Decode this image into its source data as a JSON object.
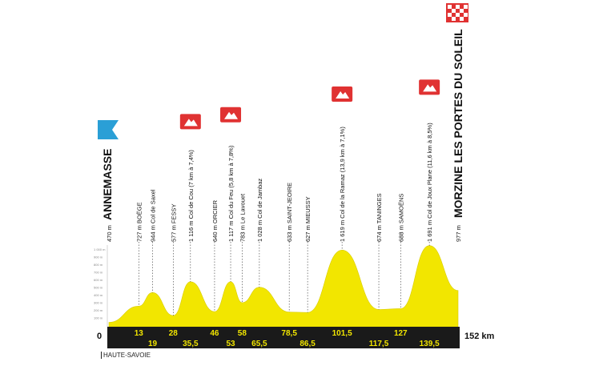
{
  "chart_data": {
    "type": "area",
    "start_km": "0",
    "end_km": "152 km",
    "colors": {
      "profile_fill": "#f2e600",
      "distance_band": "#1a1a1a",
      "climb_marker": "#e03232",
      "start_marker": "#2a9fd6"
    },
    "y_ticks": [
      "1 000 m",
      "900 m",
      "800 m",
      "700 m",
      "600 m",
      "500 m",
      "400 m",
      "300 m",
      "200 m",
      "100 m"
    ],
    "distance_labels": [
      "13",
      "19",
      "28",
      "35,5",
      "46",
      "53",
      "58",
      "65,5",
      "78,5",
      "86,5",
      "101,5",
      "117,5",
      "127",
      "139,5"
    ],
    "waypoints": [
      {
        "km": 0,
        "elev": 470,
        "label": "470 m",
        "name": "ANNEMASSE",
        "type": "start"
      },
      {
        "km": 13,
        "elev": 727,
        "label": "727 m BOËGE"
      },
      {
        "km": 19,
        "elev": 944,
        "label": "944 m Col de Saxel"
      },
      {
        "km": 28,
        "elev": 577,
        "label": "577 m FESSY"
      },
      {
        "km": 35.5,
        "elev": 1116,
        "label": "1 116 m Col de Cou (7 km à 7,4%)",
        "climb": true
      },
      {
        "km": 46,
        "elev": 640,
        "label": "640 m ORCIER"
      },
      {
        "km": 53,
        "elev": 1117,
        "label": "1 117 m Col du Feu (5,8 km à 7,8%)",
        "climb": true
      },
      {
        "km": 58,
        "elev": 783,
        "label": "783 m Le Lavouet"
      },
      {
        "km": 65.5,
        "elev": 1028,
        "label": "1 028 m Col de Jambaz"
      },
      {
        "km": 78.5,
        "elev": 633,
        "label": "633 m SAINT-JEOIRE"
      },
      {
        "km": 86.5,
        "elev": 627,
        "label": "627 m MIEUSSY"
      },
      {
        "km": 101.5,
        "elev": 1619,
        "label": "1 619 m Col de la Ramaz (13,9 km à 7,1%)",
        "climb": true
      },
      {
        "km": 117.5,
        "elev": 674,
        "label": "674 m TANINGES"
      },
      {
        "km": 127,
        "elev": 688,
        "label": "688 m SAMOËNS"
      },
      {
        "km": 139.5,
        "elev": 1691,
        "label": "1 691 m Col de Joux Plane (11,6 km à 8,5%)",
        "climb": true
      },
      {
        "km": 152,
        "elev": 977,
        "label": "977 m",
        "name": "MORZINE LES PORTES DU SOLEIL",
        "type": "finish"
      }
    ]
  },
  "footer": {
    "region": "HAUTE-SAVOIE"
  }
}
